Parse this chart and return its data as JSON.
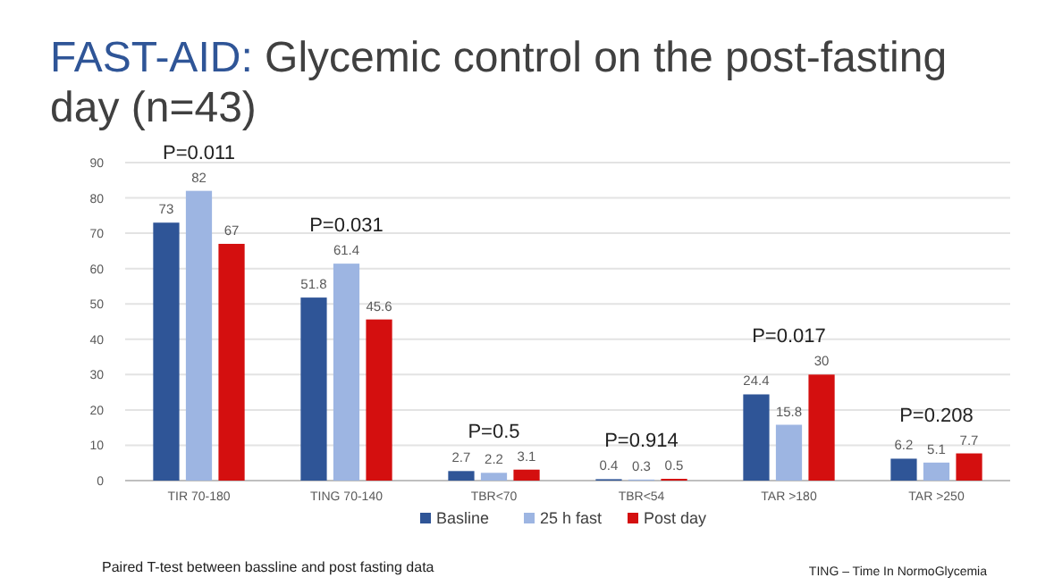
{
  "chart_data": {
    "type": "bar",
    "title": "FAST-AID: Glycemic control on the post-fasting day (n=43)",
    "categories": [
      "TIR 70-180",
      "TING 70-140",
      "TBR<70",
      "TBR<54",
      "TAR >180",
      "TAR >250"
    ],
    "series": [
      {
        "name": "Basline",
        "color": "#2f5597",
        "values": [
          73,
          51.8,
          2.7,
          0.4,
          24.4,
          6.2
        ]
      },
      {
        "name": "25 h fast",
        "color": "#9db5e2",
        "values": [
          82,
          61.4,
          2.2,
          0.3,
          15.8,
          5.1
        ]
      },
      {
        "name": "Post day",
        "color": "#d40f0f",
        "values": [
          67,
          45.6,
          3.1,
          0.5,
          30,
          7.7
        ]
      }
    ],
    "ylim": [
      0,
      90
    ],
    "yticks": [
      0,
      10,
      20,
      30,
      40,
      50,
      60,
      70,
      80,
      90
    ],
    "grid": "y",
    "legend": "bottom",
    "data_labels": true,
    "annotations": [
      "P=0.011",
      "P=0.031",
      "P=0.5",
      "P=0.914",
      "P=0.017",
      "P=0.208",
      "Paired T-test between bassline and post fasting data",
      "TING – Time In NormoGlycemia"
    ]
  }
}
